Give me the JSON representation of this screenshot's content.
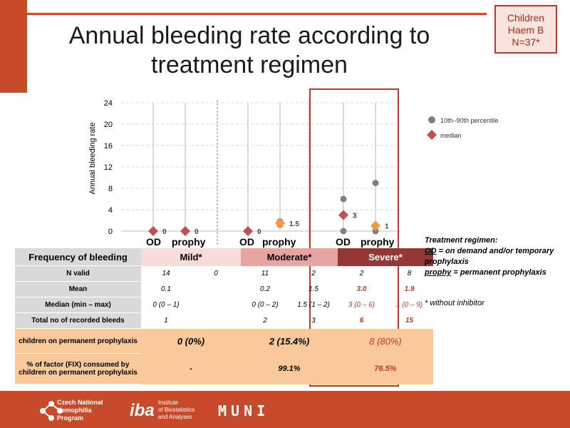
{
  "slide": {
    "title": "Annual bleeding rate according to treatment regimen",
    "badge": [
      "Children",
      "Haem B",
      "N=37*"
    ]
  },
  "chart_data": {
    "type": "scatter",
    "ylabel": "Annual bleeding rate",
    "ylim": [
      0,
      24
    ],
    "yticks": [
      "0",
      "4",
      "8",
      "12",
      "16",
      "20",
      "24"
    ],
    "groups": [
      {
        "name": "Mild*",
        "categories": [
          "OD",
          "prophy"
        ]
      },
      {
        "name": "Moderate*",
        "categories": [
          "OD",
          "prophy"
        ]
      },
      {
        "name": "Severe*",
        "categories": [
          "OD",
          "prophy"
        ]
      }
    ],
    "points": [
      {
        "group": "Mild*",
        "category": "OD",
        "median": 0,
        "median_label": "0",
        "p10": null,
        "p90": null,
        "color": "#c0504d"
      },
      {
        "group": "Mild*",
        "category": "prophy",
        "median": 0,
        "median_label": "0",
        "p10": null,
        "p90": null,
        "color": "#c0504d"
      },
      {
        "group": "Moderate*",
        "category": "OD",
        "median": 0,
        "median_label": "0",
        "p10": null,
        "p90": null,
        "color": "#c0504d"
      },
      {
        "group": "Moderate*",
        "category": "prophy",
        "median": 1.5,
        "median_label": "1.5",
        "p10": 1.2,
        "p90": 1.8,
        "color": "#f79646"
      },
      {
        "group": "Severe*",
        "category": "OD",
        "median": 3,
        "median_label": "3",
        "p10": 0,
        "p90": 6,
        "color": "#c0504d"
      },
      {
        "group": "Severe*",
        "category": "prophy",
        "median": 1,
        "median_label": "1",
        "p10": 0,
        "p90": 9,
        "color": "#f79646"
      }
    ],
    "legend": [
      {
        "label": "10th–90th percentile",
        "marker": "circle",
        "color": "#7f7f7f"
      },
      {
        "label": "median",
        "marker": "diamond",
        "color": "#c0504d"
      }
    ],
    "legend_position": "right"
  },
  "table": {
    "header_label": "Frequency of bleeding",
    "groups": [
      "Mild*",
      "Moderate*",
      "Severe*"
    ],
    "rows": [
      {
        "label": "N valid",
        "values": [
          "14",
          "0",
          "11",
          "2",
          "2",
          "8"
        ]
      },
      {
        "label": "Mean",
        "values": [
          "0.1",
          "",
          "0.2",
          "1.5",
          "3.0",
          "1.9"
        ]
      },
      {
        "label": "Median (min – max)",
        "values": [
          "0 (0 – 1)",
          "",
          "0 (0 – 2)",
          "1.5 (1 – 2)",
          "3 (0 – 6)",
          "1 (0 – 9)"
        ]
      },
      {
        "label": "Total no of recorded bleeds",
        "values": [
          "1",
          "",
          "2",
          "3",
          "6",
          "15"
        ]
      }
    ],
    "permanent": {
      "label": "children on permanent prophylaxis",
      "values": [
        "0 (0%)",
        "2 (15.4%)",
        "8 (80%)"
      ]
    },
    "factor": {
      "label": "% of factor (FIX) consumed by children on permanent prophylaxis",
      "values": [
        "-",
        "99.1%",
        "76.5%"
      ]
    }
  },
  "notes": {
    "heading": "Treatment regimen:",
    "od_term": "OD",
    "od_text": " = on demand and/or temporary prophylaxis",
    "prophy_term": "prophy",
    "prophy_text": " = permanent prophylaxis",
    "footnote": "* without inhibitor"
  },
  "footer": {
    "logo1": [
      "Czech National",
      "Hemophilia",
      "Program"
    ],
    "logo2_main": "iba",
    "logo2_text": [
      "Institute",
      "of Biostatistics",
      "and Analyses"
    ],
    "logo3": "MUNI"
  }
}
